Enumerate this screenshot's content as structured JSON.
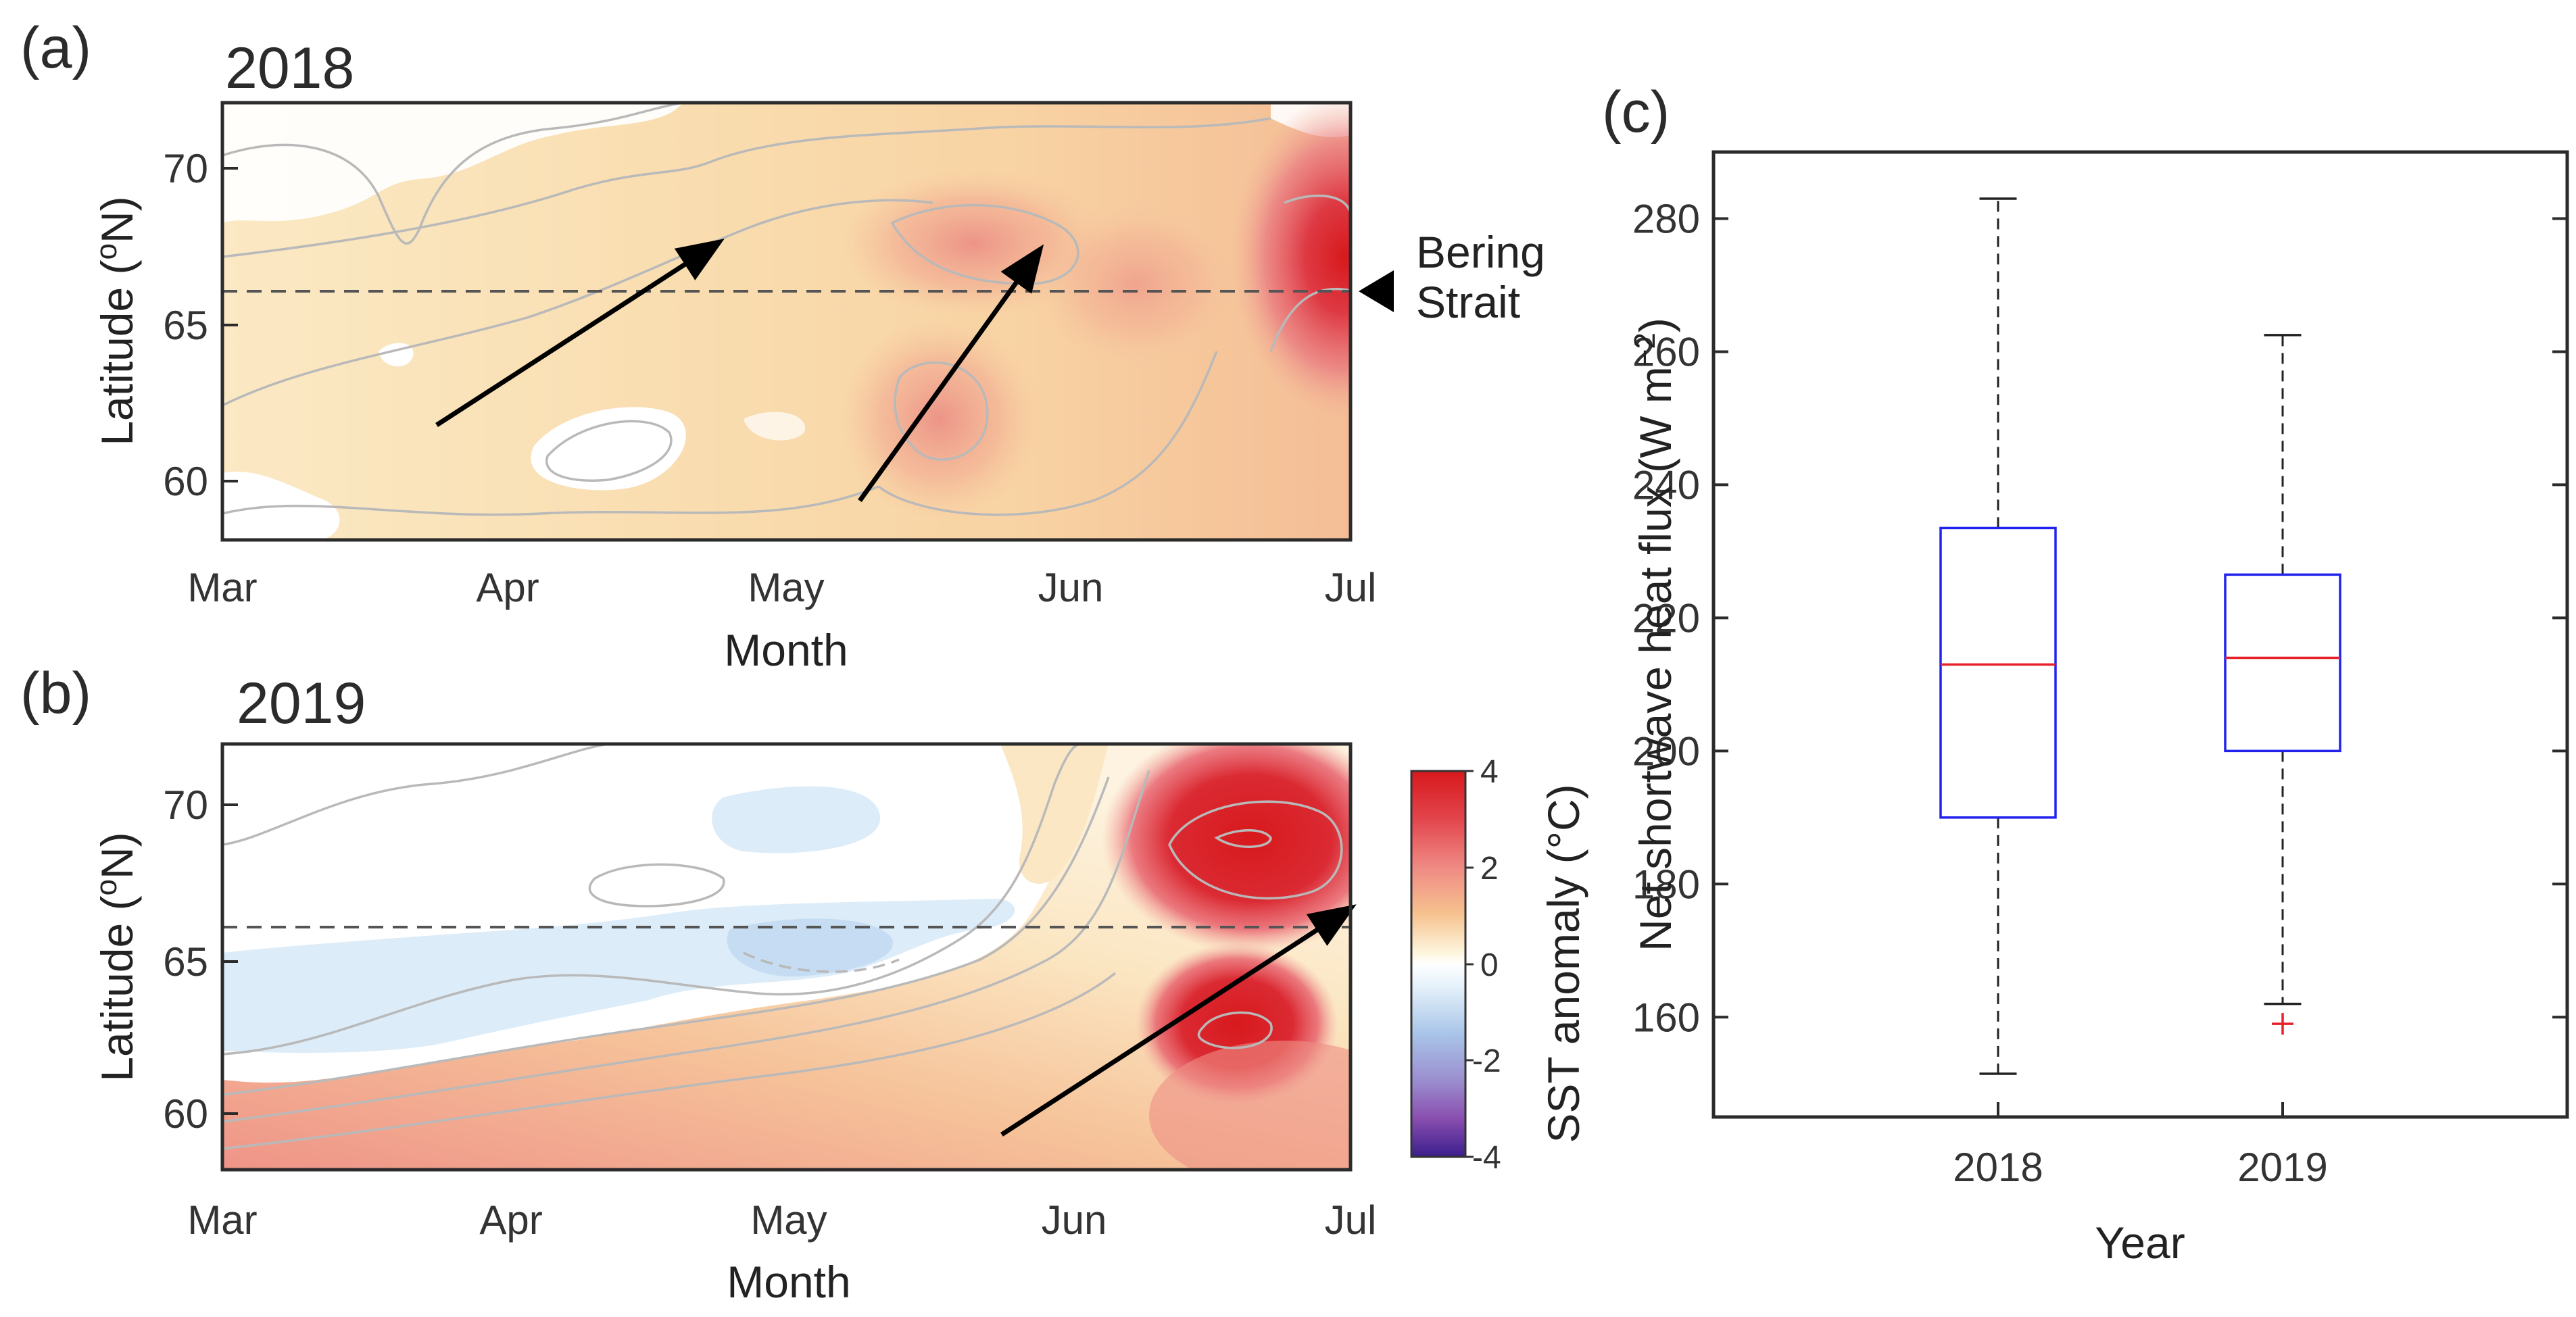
{
  "panels": {
    "a": {
      "label": "(a)",
      "year": "2018",
      "xlabel": "Month",
      "ylabel": "Latitude (",
      "ylabel_sup": "o",
      "ylabel_end": "N)",
      "x_ticks": [
        "Mar",
        "Apr",
        "May",
        "Jun",
        "Jul"
      ],
      "y_ticks": [
        "60",
        "65",
        "70"
      ],
      "annotation_line1": "Bering",
      "annotation_line2": "Strait"
    },
    "b": {
      "label": "(b)",
      "year": "2019",
      "xlabel": "Month",
      "ylabel": "Latitude (",
      "ylabel_sup": "o",
      "ylabel_end": "N)",
      "x_ticks": [
        "Mar",
        "Apr",
        "May",
        "Jun",
        "Jul"
      ],
      "y_ticks": [
        "60",
        "65",
        "70"
      ]
    },
    "c": {
      "label": "(c)"
    }
  },
  "colorbar": {
    "label": "SST anomaly (°C)",
    "ticks": [
      "4",
      "2",
      "0",
      "-2",
      "-4"
    ]
  },
  "chart_data": [
    {
      "type": "heatmap",
      "panel": "a",
      "title": "2018",
      "xlabel": "Month",
      "ylabel": "Latitude (oN)",
      "x_categories": [
        "Mar",
        "Apr",
        "May",
        "Jun",
        "Jul"
      ],
      "ylim": [
        58,
        72
      ],
      "colorbar_range": [
        -4,
        4
      ],
      "reference_latitude": 66,
      "reference_label": "Bering Strait",
      "note": "SST anomaly field, mostly +0.5 to +2 °C, peaking ~4 °C near 67°N in early July",
      "propagation_arrows": [
        {
          "from": {
            "month": 3.85,
            "lat": 61.8
          },
          "to": {
            "month": 5.1,
            "lat": 67.7
          }
        },
        {
          "from": {
            "month": 5.45,
            "lat": 59.5
          },
          "to": {
            "month": 6.05,
            "lat": 67.5
          }
        }
      ]
    },
    {
      "type": "heatmap",
      "panel": "b",
      "title": "2019",
      "xlabel": "Month",
      "ylabel": "Latitude (oN)",
      "x_categories": [
        "Mar",
        "Apr",
        "May",
        "Jun",
        "Jul"
      ],
      "ylim": [
        58,
        72
      ],
      "colorbar_range": [
        -4,
        4
      ],
      "reference_latitude": 66,
      "note": "Negative anomalies (~-1 °C) near 65–66°N in Apr–May; strong positive anomalies (>4 °C) at 62–70°N in late June",
      "propagation_arrows": [
        {
          "from": {
            "month": 5.7,
            "lat": 59.5
          },
          "to": {
            "month": 7.0,
            "lat": 67.0
          }
        }
      ]
    },
    {
      "type": "box",
      "panel": "c",
      "xlabel": "Year",
      "ylabel": "Net shortwave heat flux (W m",
      "ylabel_sup": "−2",
      "ylabel_end": ")",
      "categories": [
        "2018",
        "2019"
      ],
      "ylim": [
        145,
        290
      ],
      "y_ticks": [
        160,
        180,
        200,
        220,
        240,
        260,
        280
      ],
      "boxes": [
        {
          "category": "2018",
          "whisker_low": 151.5,
          "q1": 190,
          "median": 213,
          "q3": 233.5,
          "whisker_high": 283,
          "outliers": []
        },
        {
          "category": "2019",
          "whisker_low": 162,
          "q1": 200,
          "median": 214,
          "q3": 226.5,
          "whisker_high": 262.5,
          "outliers": [
            159
          ]
        }
      ]
    }
  ]
}
